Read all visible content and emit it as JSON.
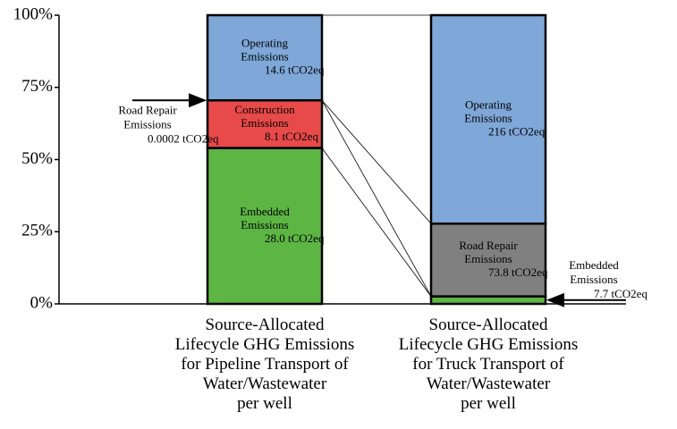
{
  "chart_data": {
    "type": "stacked_bar_100",
    "categories": [
      "Source-Allocated\nLifecycle GHG Emissions\nfor Pipeline Transport of\nWater/Wastewater\nper well",
      "Source-Allocated\nLifecycle GHG Emissions\nfor Truck Transport of\nWater/Wastewater\nper well"
    ],
    "series": [
      {
        "name": "Embedded Emissions",
        "color": "#5db543",
        "values": [
          54,
          2.6
        ],
        "amounts": [
          "28.0 tCO2eq",
          "7.7 tCO2eq"
        ]
      },
      {
        "name": "Construction Emissions",
        "color": "#e84a4a",
        "values": [
          16.5,
          0
        ],
        "amounts": [
          "8.1 tCO2eq",
          null
        ]
      },
      {
        "name": "Road Repair Emissions",
        "color": "#808080",
        "values": [
          0,
          25.2
        ],
        "amounts": [
          "0.0002 tCO2eq",
          "73.8 tCO2eq"
        ]
      },
      {
        "name": "Operating Emissions",
        "color": "#7fa7d8",
        "values": [
          29.5,
          72.2
        ],
        "amounts": [
          "14.6 tCO2eq",
          "216 tCO2eq"
        ]
      }
    ],
    "ylim": [
      0,
      100
    ],
    "yticks": [
      {
        "value": 0,
        "label": "0%"
      },
      {
        "value": 25,
        "label": "25%"
      },
      {
        "value": 50,
        "label": "50%"
      },
      {
        "value": 75,
        "label": "75%"
      },
      {
        "value": 100,
        "label": "100%"
      }
    ]
  }
}
